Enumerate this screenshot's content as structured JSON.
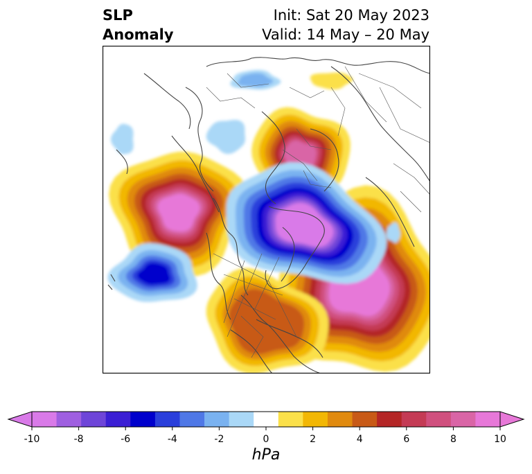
{
  "title": {
    "left": "SLP\nAnomaly",
    "init": "Init: Sat 20 May 2023",
    "valid": "Valid: 14 May – 20 May"
  },
  "colorbar": {
    "unit": "hPa",
    "ticks": [
      "-10",
      "-8",
      "-6",
      "-4",
      "-2",
      "0",
      "2",
      "4",
      "6",
      "8",
      "10"
    ],
    "levels": [
      -10,
      -9,
      -8,
      -7,
      -6,
      -5,
      -4,
      -3,
      -2,
      -1,
      1,
      2,
      3,
      4,
      5,
      6,
      7,
      8,
      9,
      10
    ],
    "colors": [
      "#d97ae8",
      "#9f5fe0",
      "#6e45d8",
      "#3b1fd4",
      "#0000cc",
      "#2a3fdb",
      "#4f78e6",
      "#7ab2f0",
      "#aad8f7",
      "#ffffff",
      "#fbe04a",
      "#f2b705",
      "#e08a0f",
      "#c85a17",
      "#b42626",
      "#c43b55",
      "#d0507e",
      "#d965a6",
      "#e778d8"
    ],
    "under_color": "#d97ae8",
    "over_color": "#e778d8"
  },
  "map": {
    "projection": "north-polar-stereographic",
    "features": [
      {
        "name": "greenland-europe-arctic-low",
        "anomaly": -10
      },
      {
        "name": "north-atlantic-high",
        "anomaly": 10
      },
      {
        "name": "gulf-of-alaska-high",
        "anomaly": 10
      },
      {
        "name": "scandinavia-high",
        "anomaly": 8
      },
      {
        "name": "north-pacific-low",
        "anomaly": -5
      },
      {
        "name": "central-north-america-high",
        "anomaly": 4
      },
      {
        "name": "east-siberia-low",
        "anomaly": -2
      }
    ]
  }
}
